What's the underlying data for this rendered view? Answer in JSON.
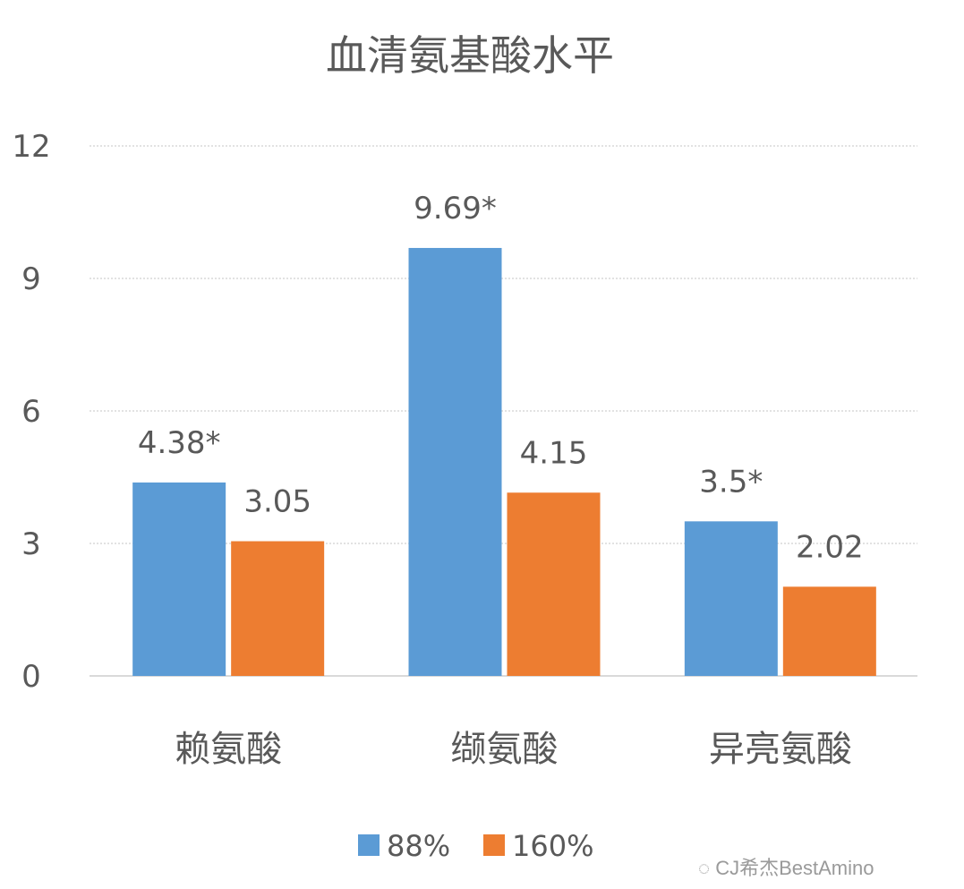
{
  "chart_data": {
    "type": "bar",
    "title": "血清氨基酸水平",
    "categories": [
      "赖氨酸",
      "缬氨酸",
      "异亮氨酸"
    ],
    "series": [
      {
        "name": "88%",
        "color": "#5B9BD5",
        "values": [
          4.38,
          9.69,
          3.5
        ],
        "labels": [
          "4.38*",
          "9.69*",
          "3.5*"
        ]
      },
      {
        "name": "160%",
        "color": "#ED7D31",
        "values": [
          3.05,
          4.15,
          2.02
        ],
        "labels": [
          "3.05",
          "4.15",
          "2.02"
        ]
      }
    ],
    "ylim": [
      0,
      12
    ],
    "yticks": [
      "0",
      "3",
      "6",
      "9",
      "12"
    ],
    "grid": true,
    "legend": "bottom"
  },
  "watermark": "CJ希杰BestAmino"
}
